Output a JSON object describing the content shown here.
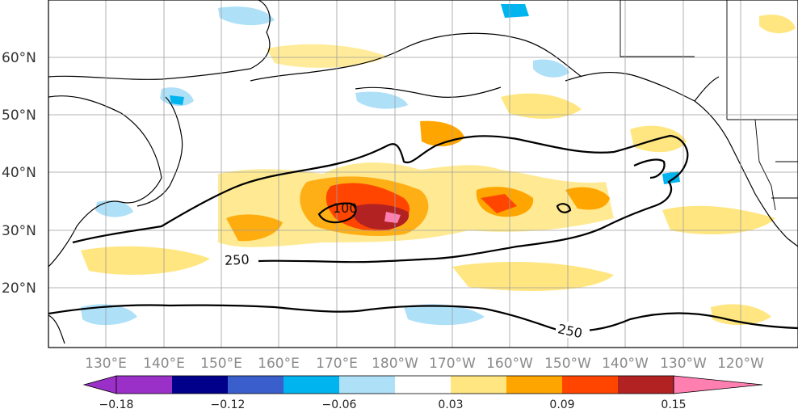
{
  "map": {
    "lat_labels": [
      "60°N",
      "50°N",
      "40°N",
      "30°N",
      "20°N"
    ],
    "lon_labels": [
      "130°E",
      "140°E",
      "150°E",
      "160°E",
      "170°E",
      "180°W",
      "170°W",
      "160°W",
      "150°W",
      "140°W",
      "130°W",
      "120°W"
    ],
    "contour_labels": [
      "100",
      "250",
      "250"
    ],
    "grid": true
  },
  "colorbar": {
    "tick_labels": [
      "−0.18",
      "−0.12",
      "−0.06",
      "0.03",
      "0.09",
      "0.15"
    ],
    "colors": [
      "#9b30c8",
      "#00008b",
      "#3a5fcd",
      "#00b4f0",
      "#aee0f8",
      "#ffffff",
      "#ffe680",
      "#ffa500",
      "#ff4500",
      "#b22222",
      "#ff7fb0"
    ]
  }
}
